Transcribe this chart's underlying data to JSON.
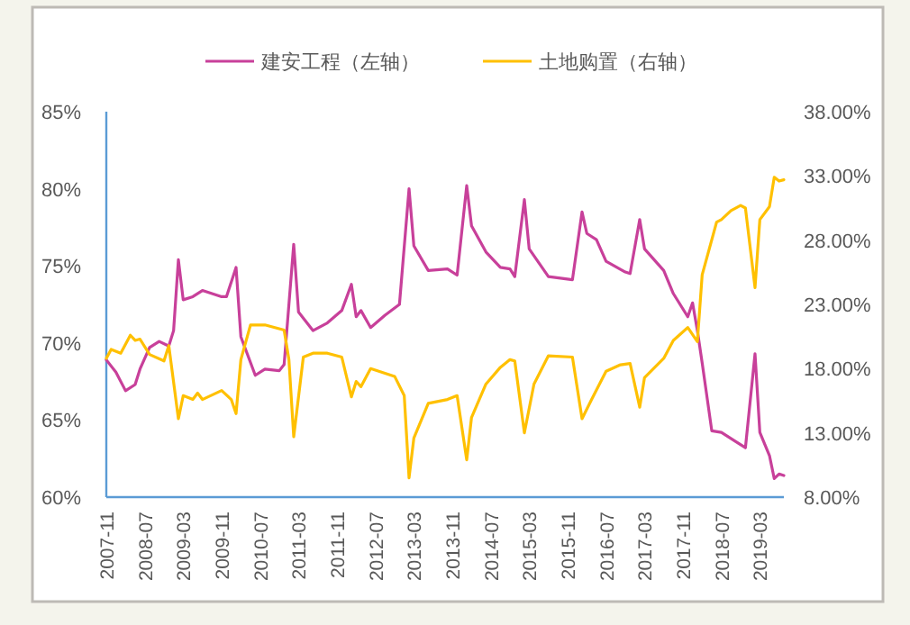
{
  "chart_data": {
    "type": "line",
    "legend": "top",
    "xlim": [
      "2007-11",
      "2019-08"
    ],
    "xticks": [
      "2007-11",
      "2008-07",
      "2009-03",
      "2009-11",
      "2010-07",
      "2011-03",
      "2011-11",
      "2012-07",
      "2013-03",
      "2013-11",
      "2014-07",
      "2015-03",
      "2015-11",
      "2016-07",
      "2017-03",
      "2017-11",
      "2018-07",
      "2019-03"
    ],
    "ylim": [
      60,
      85
    ],
    "yticks": [
      {
        "value": 60,
        "label": "60%"
      },
      {
        "value": 65,
        "label": "65%"
      },
      {
        "value": 70,
        "label": "70%"
      },
      {
        "value": 75,
        "label": "75%"
      },
      {
        "value": 80,
        "label": "80%"
      },
      {
        "value": 85,
        "label": "85%"
      }
    ],
    "y2lim": [
      8,
      38
    ],
    "y2ticks": [
      {
        "value": 8,
        "label": "8.00%"
      },
      {
        "value": 13,
        "label": "13.00%"
      },
      {
        "value": 18,
        "label": "18.00%"
      },
      {
        "value": 23,
        "label": "23.00%"
      },
      {
        "value": 28,
        "label": "28.00%"
      },
      {
        "value": 33,
        "label": "33.00%"
      },
      {
        "value": 38,
        "label": "38.00%"
      }
    ],
    "series": [
      {
        "name": "建安工程（左轴）",
        "color": "#c8409a",
        "axis": "y",
        "x": [
          "2007-11",
          "2008-01",
          "2008-03",
          "2008-05",
          "2008-06",
          "2008-08",
          "2008-10",
          "2008-12",
          "2009-01",
          "2009-02",
          "2009-03",
          "2009-05",
          "2009-07",
          "2009-11",
          "2009-12",
          "2010-02",
          "2010-03",
          "2010-06",
          "2010-08",
          "2010-11",
          "2010-12",
          "2011-02",
          "2011-03",
          "2011-06",
          "2011-09",
          "2011-12",
          "2012-02",
          "2012-03",
          "2012-04",
          "2012-06",
          "2012-09",
          "2012-12",
          "2013-02",
          "2013-03",
          "2013-06",
          "2013-10",
          "2013-12",
          "2014-02",
          "2014-03",
          "2014-06",
          "2014-09",
          "2014-11",
          "2014-12",
          "2015-02",
          "2015-03",
          "2015-07",
          "2015-12",
          "2016-02",
          "2016-03",
          "2016-05",
          "2016-07",
          "2016-11",
          "2016-12",
          "2017-02",
          "2017-03",
          "2017-07",
          "2017-09",
          "2017-12",
          "2018-01",
          "2018-02",
          "2018-03",
          "2018-05",
          "2018-07",
          "2018-10",
          "2018-12",
          "2019-02",
          "2019-03",
          "2019-05",
          "2019-06",
          "2019-07",
          "2019-08"
        ],
        "values": [
          68.9,
          68.1,
          66.9,
          67.3,
          68.3,
          69.7,
          70.1,
          69.8,
          70.8,
          75.4,
          72.8,
          73.0,
          73.4,
          73.0,
          73.0,
          74.9,
          70.4,
          67.9,
          68.3,
          68.2,
          68.6,
          76.4,
          72.0,
          70.8,
          71.3,
          72.1,
          73.8,
          71.7,
          72.1,
          71.0,
          71.8,
          72.5,
          80.0,
          76.3,
          74.7,
          74.8,
          74.4,
          80.2,
          77.6,
          75.9,
          74.9,
          74.8,
          74.3,
          79.3,
          76.1,
          74.3,
          74.1,
          78.5,
          77.1,
          76.7,
          75.3,
          74.6,
          74.5,
          78.0,
          76.1,
          74.7,
          73.2,
          71.7,
          72.6,
          70.8,
          68.7,
          64.3,
          64.2,
          63.6,
          63.2,
          69.3,
          64.2,
          62.7,
          61.2,
          61.5,
          61.4
        ]
      },
      {
        "name": "土地购置（右轴）",
        "color": "#ffc000",
        "axis": "y2",
        "x": [
          "2007-11",
          "2007-12",
          "2008-02",
          "2008-04",
          "2008-05",
          "2008-06",
          "2008-08",
          "2008-11",
          "2008-12",
          "2009-02",
          "2009-03",
          "2009-05",
          "2009-06",
          "2009-07",
          "2009-11",
          "2010-01",
          "2010-02",
          "2010-03",
          "2010-05",
          "2010-08",
          "2010-12",
          "2011-01",
          "2011-02",
          "2011-04",
          "2011-06",
          "2011-09",
          "2011-12",
          "2012-02",
          "2012-03",
          "2012-04",
          "2012-06",
          "2012-11",
          "2013-01",
          "2013-02",
          "2013-03",
          "2013-06",
          "2013-10",
          "2013-12",
          "2014-02",
          "2014-03",
          "2014-06",
          "2014-09",
          "2014-11",
          "2014-12",
          "2015-02",
          "2015-04",
          "2015-07",
          "2015-12",
          "2016-02",
          "2016-04",
          "2016-07",
          "2016-10",
          "2016-12",
          "2017-02",
          "2017-03",
          "2017-07",
          "2017-09",
          "2017-12",
          "2018-02",
          "2018-03",
          "2018-06",
          "2018-07",
          "2018-09",
          "2018-11",
          "2018-12",
          "2019-02",
          "2019-03",
          "2019-05",
          "2019-06",
          "2019-07",
          "2019-08"
        ],
        "values": [
          18.8,
          19.5,
          19.2,
          20.6,
          20.2,
          20.3,
          19.1,
          18.6,
          19.8,
          14.1,
          15.9,
          15.6,
          16.1,
          15.6,
          16.3,
          15.6,
          14.5,
          18.7,
          21.4,
          21.4,
          21.0,
          18.7,
          12.7,
          18.9,
          19.2,
          19.2,
          18.9,
          15.8,
          17.0,
          16.6,
          18.0,
          17.4,
          15.9,
          9.5,
          12.6,
          15.3,
          15.6,
          15.9,
          10.9,
          14.2,
          16.8,
          18.1,
          18.7,
          18.6,
          13.0,
          16.8,
          19.0,
          18.9,
          14.1,
          15.6,
          17.8,
          18.3,
          18.4,
          15.0,
          17.3,
          18.8,
          20.2,
          21.2,
          20.1,
          25.3,
          29.4,
          29.6,
          30.3,
          30.7,
          30.5,
          24.3,
          29.6,
          30.6,
          32.9,
          32.6,
          32.7
        ]
      }
    ]
  }
}
